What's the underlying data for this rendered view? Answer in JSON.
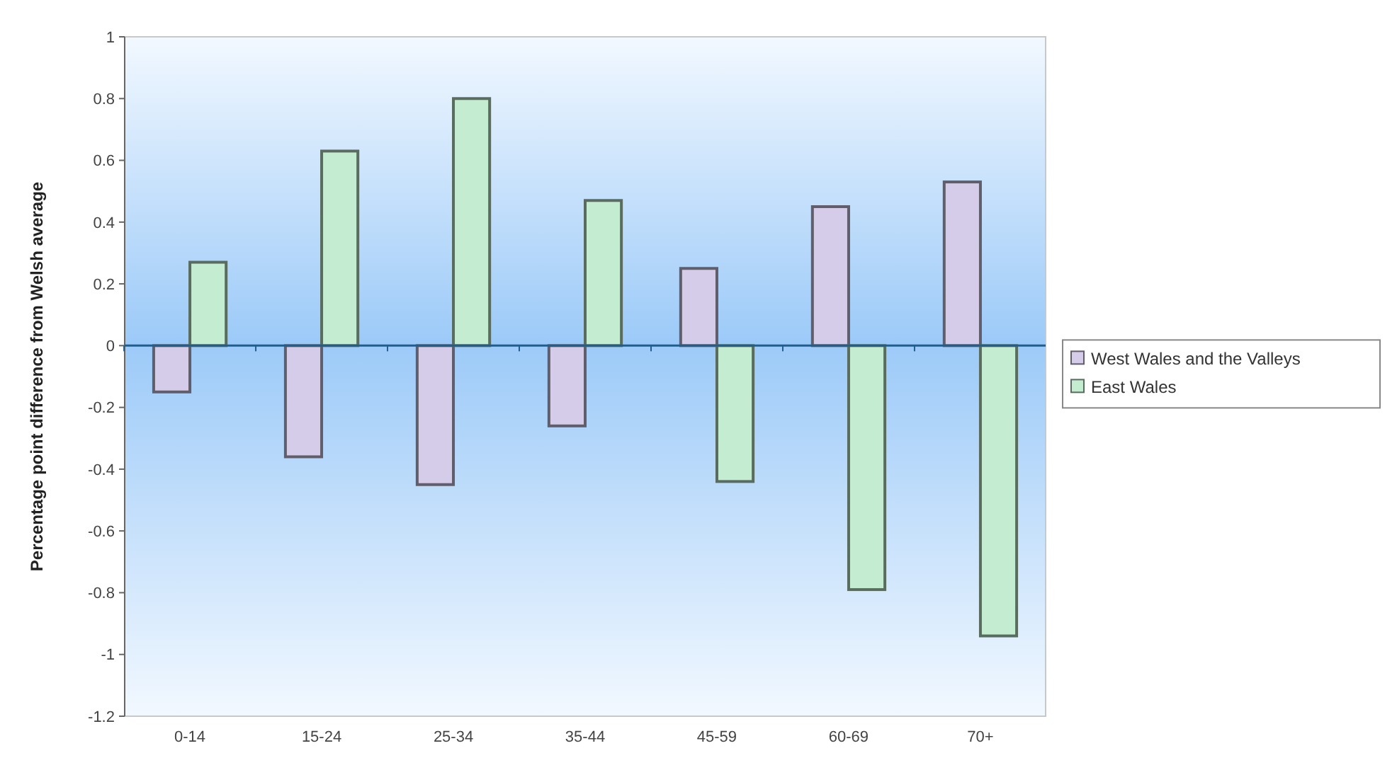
{
  "chart_data": {
    "type": "bar",
    "ylabel": "Percentage point difference from Welsh average",
    "categories": [
      "0-14",
      "15-24",
      "25-34",
      "35-44",
      "45-59",
      "60-69",
      "70+"
    ],
    "series": [
      {
        "name": "West Wales and the Valleys",
        "color": "#d4cce8",
        "values": [
          -0.15,
          -0.36,
          -0.45,
          -0.26,
          0.25,
          0.45,
          0.53
        ]
      },
      {
        "name": "East Wales",
        "color": "#c4ecd0",
        "values": [
          0.27,
          0.63,
          0.8,
          0.47,
          -0.44,
          -0.79,
          -0.94
        ]
      }
    ],
    "ylim": [
      -1.2,
      1
    ],
    "yticks": [
      -1.2,
      -1,
      -0.8,
      -0.6,
      -0.4,
      -0.2,
      0,
      0.2,
      0.4,
      0.6,
      0.8,
      1
    ],
    "legend": "right",
    "grid": false,
    "ref_lines": [
      {
        "axis": "y",
        "value": 0,
        "color": "#1f5f8f"
      }
    ]
  }
}
